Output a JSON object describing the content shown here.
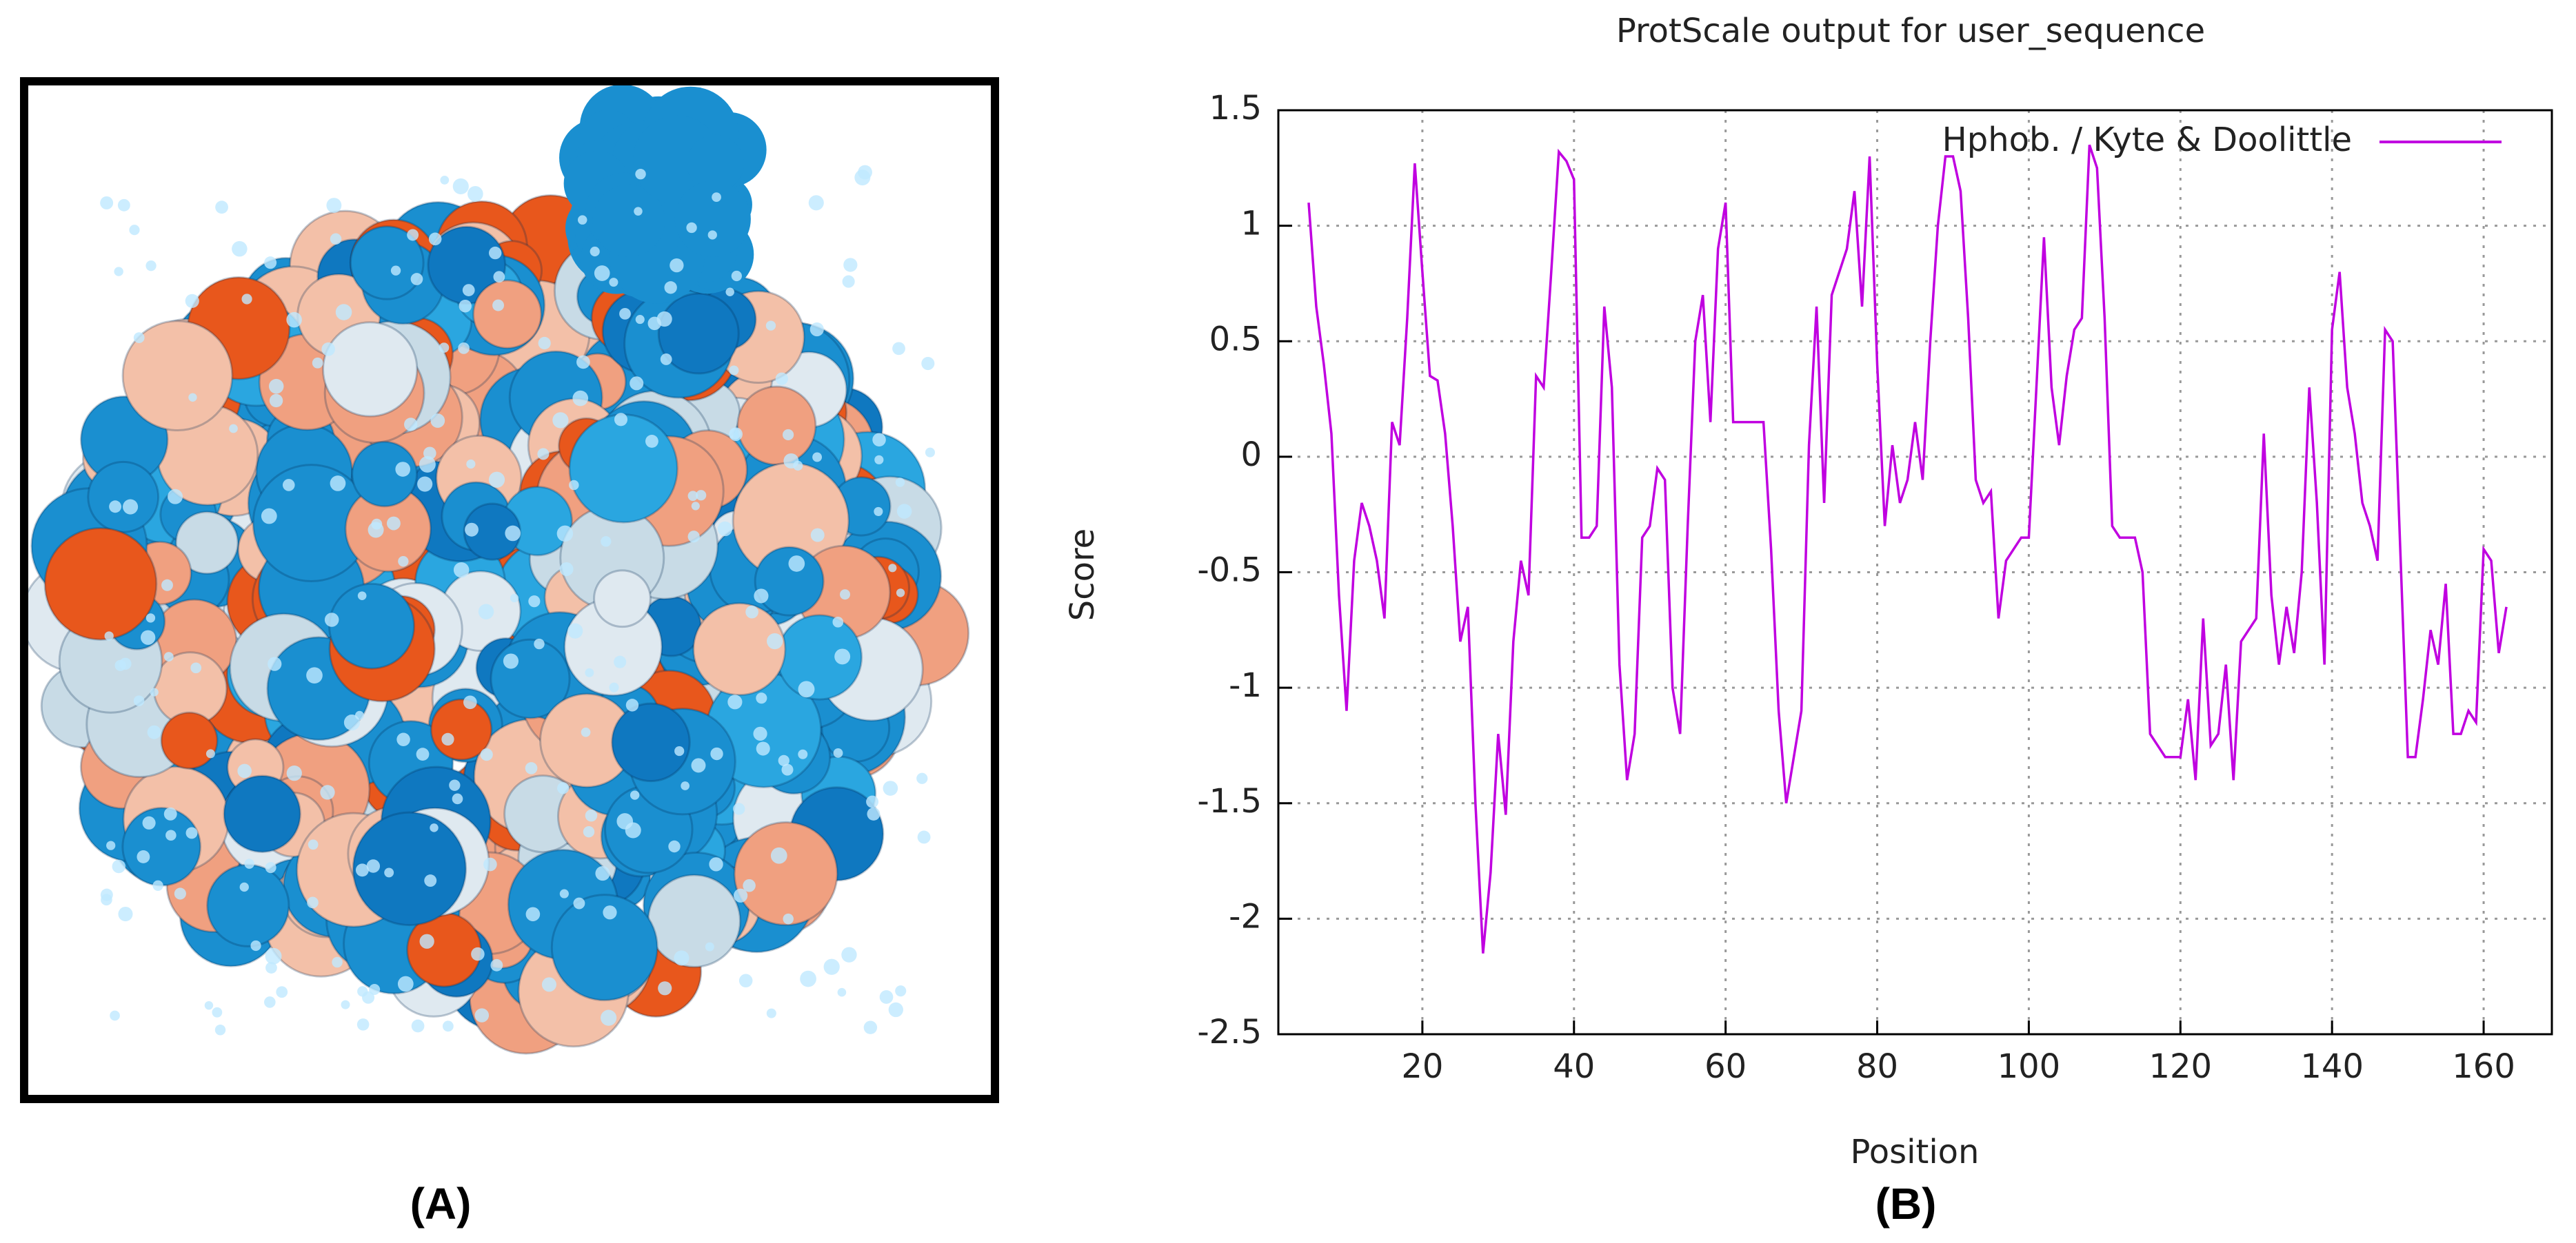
{
  "panel_labels": [
    "(A)",
    "(B)"
  ],
  "chart_data": {
    "type": "line",
    "title": "ProtScale output for user_sequence",
    "xlabel": "Position",
    "ylabel": "Score",
    "x": [
      5,
      6,
      7,
      8,
      9,
      10,
      11,
      12,
      13,
      14,
      15,
      16,
      17,
      18,
      19,
      20,
      21,
      22,
      23,
      24,
      25,
      26,
      27,
      28,
      29,
      30,
      31,
      32,
      33,
      34,
      35,
      36,
      37,
      38,
      39,
      40,
      41,
      42,
      43,
      44,
      45,
      46,
      47,
      48,
      49,
      50,
      51,
      52,
      53,
      54,
      55,
      56,
      57,
      58,
      59,
      60,
      61,
      62,
      63,
      64,
      65,
      66,
      67,
      68,
      69,
      70,
      71,
      72,
      73,
      74,
      75,
      76,
      77,
      78,
      79,
      80,
      81,
      82,
      83,
      84,
      85,
      86,
      87,
      88,
      89,
      90,
      91,
      92,
      93,
      94,
      95,
      96,
      97,
      98,
      99,
      100,
      101,
      102,
      103,
      104,
      105,
      106,
      107,
      108,
      109,
      110,
      111,
      112,
      113,
      114,
      115,
      116,
      117,
      118,
      119,
      120,
      121,
      122,
      123,
      124,
      125,
      126,
      127,
      128,
      129,
      130,
      131,
      132,
      133,
      134,
      135,
      136,
      137,
      138,
      139,
      140,
      141,
      142,
      143,
      144,
      145,
      146,
      147,
      148,
      149,
      150,
      151,
      152,
      153,
      154,
      155,
      156,
      157,
      158,
      159,
      160,
      161,
      162,
      163
    ],
    "series": [
      {
        "name": "Hphob. / Kyte & Doolittle",
        "color": "#c000e0",
        "values": [
          1.1,
          0.65,
          0.4,
          0.1,
          -0.6,
          -1.1,
          -0.45,
          -0.2,
          -0.3,
          -0.45,
          -0.7,
          0.15,
          0.05,
          0.6,
          1.27,
          0.8,
          0.35,
          0.33,
          0.1,
          -0.3,
          -0.8,
          -0.65,
          -1.5,
          -2.15,
          -1.8,
          -1.2,
          -1.55,
          -0.8,
          -0.45,
          -0.6,
          0.35,
          0.3,
          0.8,
          1.32,
          1.28,
          1.2,
          -0.35,
          -0.35,
          -0.3,
          0.65,
          0.3,
          -0.9,
          -1.4,
          -1.2,
          -0.35,
          -0.3,
          -0.05,
          -0.1,
          -1.0,
          -1.2,
          -0.3,
          0.5,
          0.7,
          0.15,
          0.9,
          1.1,
          0.15,
          0.15,
          0.15,
          0.15,
          0.15,
          -0.4,
          -1.1,
          -1.5,
          -1.3,
          -1.1,
          0.05,
          0.65,
          -0.2,
          0.7,
          0.8,
          0.9,
          1.15,
          0.65,
          1.3,
          0.4,
          -0.3,
          0.05,
          -0.2,
          -0.1,
          0.15,
          -0.1,
          0.5,
          1.0,
          1.3,
          1.3,
          1.15,
          0.6,
          -0.1,
          -0.2,
          -0.15,
          -0.7,
          -0.45,
          -0.4,
          -0.35,
          -0.35,
          0.3,
          0.95,
          0.3,
          0.05,
          0.35,
          0.55,
          0.6,
          1.35,
          1.25,
          0.6,
          -0.3,
          -0.35,
          -0.35,
          -0.35,
          -0.5,
          -1.2,
          -1.25,
          -1.3,
          -1.3,
          -1.3,
          -1.05,
          -1.4,
          -0.7,
          -1.25,
          -1.2,
          -0.9,
          -1.4,
          -0.8,
          -0.75,
          -0.7,
          0.1,
          -0.6,
          -0.9,
          -0.65,
          -0.85,
          -0.5,
          0.3,
          -0.2,
          -0.9,
          0.55,
          0.8,
          0.3,
          0.1,
          -0.2,
          -0.3,
          -0.45,
          0.55,
          0.5,
          -0.4,
          -1.3,
          -1.3,
          -1.05,
          -0.75,
          -0.9,
          -0.55,
          -1.2,
          -1.2,
          -1.1,
          -1.15,
          -0.4,
          -0.45,
          -0.85,
          -0.65
        ]
      }
    ],
    "xlim": [
      1,
      169
    ],
    "xticks": [
      20,
      40,
      60,
      80,
      100,
      120,
      140,
      160
    ],
    "ylim": [
      -2.5,
      1.5
    ],
    "yticks": [
      -2.5,
      -2,
      -1.5,
      -1,
      -0.5,
      0,
      0.5,
      1,
      1.5
    ],
    "grid": true,
    "legend": "upper right"
  }
}
